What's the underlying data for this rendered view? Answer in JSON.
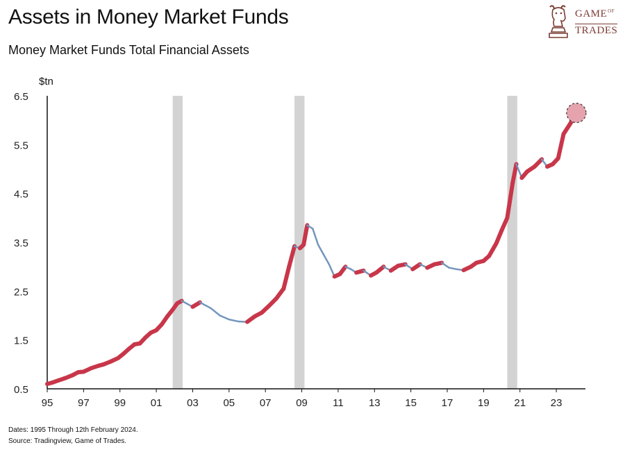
{
  "header": {
    "title": "Assets in Money Market Funds",
    "subtitle": "Money Market Funds Total Financial Assets"
  },
  "logo": {
    "line1": "GAME",
    "of": "OF",
    "line2": "TRADES",
    "icon": "bull-chess-knight-icon"
  },
  "footer": {
    "dates": "Dates: 1995 Through 12th February 2024.",
    "source": "Source: Tradingview, Game of Trades."
  },
  "chart_data": {
    "type": "line",
    "title": "Assets in Money Market Funds",
    "ylabel": "$tn",
    "xlabel": "",
    "xlim": [
      1995,
      2024.6
    ],
    "ylim": [
      0.5,
      6.5
    ],
    "y_ticks": [
      "0.5",
      "1.5",
      "2.5",
      "3.5",
      "4.5",
      "5.5",
      "6.5"
    ],
    "x_ticks": [
      {
        "label": "95",
        "year": 1995
      },
      {
        "label": "97",
        "year": 1997
      },
      {
        "label": "99",
        "year": 1999
      },
      {
        "label": "01",
        "year": 2001
      },
      {
        "label": "03",
        "year": 2003
      },
      {
        "label": "05",
        "year": 2005
      },
      {
        "label": "07",
        "year": 2007
      },
      {
        "label": "09",
        "year": 2009
      },
      {
        "label": "11",
        "year": 2011
      },
      {
        "label": "13",
        "year": 2013
      },
      {
        "label": "15",
        "year": 2015
      },
      {
        "label": "17",
        "year": 2017
      },
      {
        "label": "19",
        "year": 2019
      },
      {
        "label": "21",
        "year": 2021
      },
      {
        "label": "23",
        "year": 2023
      }
    ],
    "grid": false,
    "recessions": [
      [
        2001.9,
        2002.45
      ],
      [
        2008.6,
        2009.15
      ],
      [
        2020.3,
        2020.85
      ]
    ],
    "colors": {
      "rising": "#c8364a",
      "falling": "#7396bd",
      "recession": "#d3d3d3",
      "highlight": "#e5a3ae"
    },
    "series": [
      {
        "x": [
          1995.0,
          1995.3,
          1995.6,
          1996.0,
          1996.4,
          1996.7,
          1997.0,
          1997.4,
          1997.8,
          1998.1,
          1998.5,
          1998.9,
          1999.2,
          1999.5,
          1999.8,
          2000.1,
          2000.4,
          2000.7,
          2001.0,
          2001.3,
          2001.6,
          2001.9,
          2002.15,
          2002.4,
          2003.0,
          2003.4,
          2004.0,
          2004.5,
          2005.0,
          2005.5,
          2006.0,
          2006.4,
          2006.8,
          2007.2,
          2007.6,
          2008.0,
          2008.3,
          2008.6,
          2008.9,
          2009.1,
          2009.3,
          2009.6,
          2009.9,
          2010.2,
          2010.5,
          2010.8,
          2011.1,
          2011.4,
          2011.7,
          2012.0,
          2012.4,
          2012.8,
          2013.1,
          2013.5,
          2013.9,
          2014.3,
          2014.7,
          2015.1,
          2015.5,
          2015.9,
          2016.3,
          2016.7,
          2017.1,
          2017.5,
          2017.9,
          2018.3,
          2018.6,
          2019.0,
          2019.3,
          2019.7,
          2020.0,
          2020.3,
          2020.6,
          2020.8,
          2021.1,
          2021.4,
          2021.8,
          2022.2,
          2022.5,
          2022.8,
          2023.1,
          2023.4,
          2023.8,
          2024.1
        ],
        "y": [
          0.6,
          0.63,
          0.67,
          0.72,
          0.78,
          0.84,
          0.85,
          0.92,
          0.97,
          1.0,
          1.06,
          1.13,
          1.22,
          1.32,
          1.41,
          1.43,
          1.55,
          1.65,
          1.7,
          1.82,
          1.98,
          2.12,
          2.25,
          2.3,
          2.18,
          2.27,
          2.15,
          2.0,
          1.92,
          1.88,
          1.87,
          1.98,
          2.06,
          2.2,
          2.35,
          2.55,
          3.0,
          3.42,
          3.38,
          3.45,
          3.85,
          3.78,
          3.45,
          3.25,
          3.05,
          2.8,
          2.85,
          3.0,
          2.95,
          2.88,
          2.92,
          2.82,
          2.88,
          3.0,
          2.92,
          3.02,
          3.05,
          2.95,
          3.05,
          2.98,
          3.05,
          3.08,
          2.98,
          2.95,
          2.93,
          3.0,
          3.08,
          3.12,
          3.22,
          3.48,
          3.75,
          4.0,
          4.72,
          5.1,
          4.82,
          4.95,
          5.05,
          5.2,
          5.05,
          5.1,
          5.22,
          5.72,
          5.95,
          6.15
        ]
      }
    ],
    "annotations": [
      {
        "type": "endpoint-marker",
        "x": 2024.1,
        "y": 6.15
      }
    ]
  }
}
